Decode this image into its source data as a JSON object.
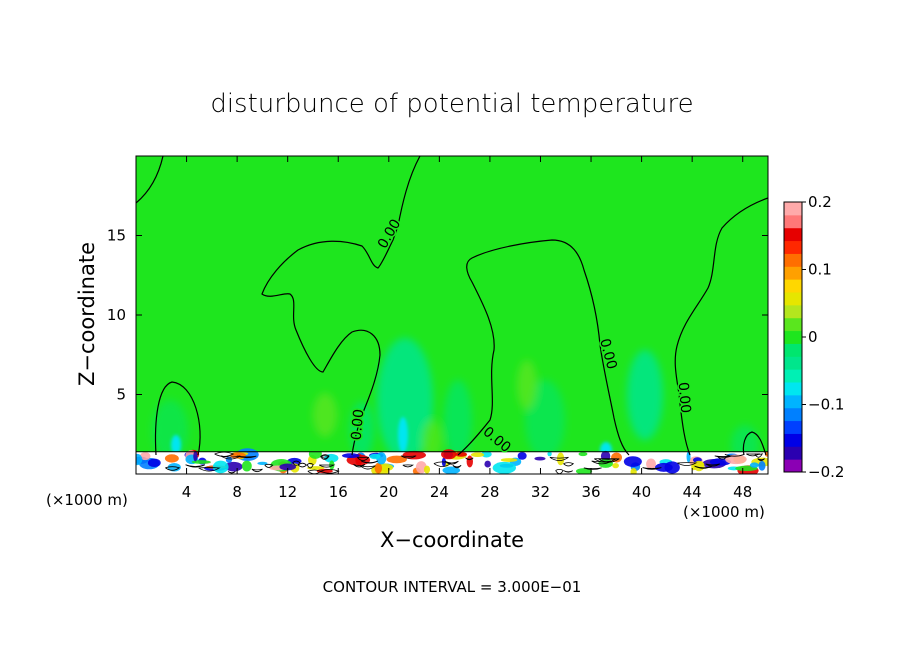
{
  "chart_data": {
    "type": "heatmap",
    "title": "disturbunce of potential temperature",
    "xlabel": "X−coordinate",
    "ylabel": "Z−coordinate",
    "x_unit_left": "(×1000 m)",
    "x_unit_right": "(×1000 m)",
    "xlim": [
      0,
      50
    ],
    "ylim": [
      0,
      20
    ],
    "xticks": [
      4,
      8,
      12,
      16,
      20,
      24,
      28,
      32,
      36,
      40,
      44,
      48
    ],
    "yticks": [
      5,
      10,
      15
    ],
    "contour_interval_text": "CONTOUR INTERVAL = 3.000E−01",
    "contour_label": "0.00",
    "colorbar": {
      "range": [
        -0.2,
        0.2
      ],
      "tick_labels": [
        "0.2",
        "0.1",
        "0",
        "−0.1",
        "−0.2"
      ],
      "tick_values": [
        0.2,
        0.1,
        0,
        -0.1,
        -0.2
      ],
      "colors": [
        "#8b00b4",
        "#2b00b0",
        "#0000e6",
        "#0040ff",
        "#0080ff",
        "#00b4ff",
        "#00e6f0",
        "#00f0b4",
        "#00e68c",
        "#00e66e",
        "#1ee61e",
        "#5ae61e",
        "#b4e61e",
        "#e6e600",
        "#ffd700",
        "#ffa000",
        "#ff6e00",
        "#ff2800",
        "#e60000",
        "#ff7878",
        "#ffaaaa"
      ]
    },
    "background_value": 0.02,
    "grid": false
  }
}
